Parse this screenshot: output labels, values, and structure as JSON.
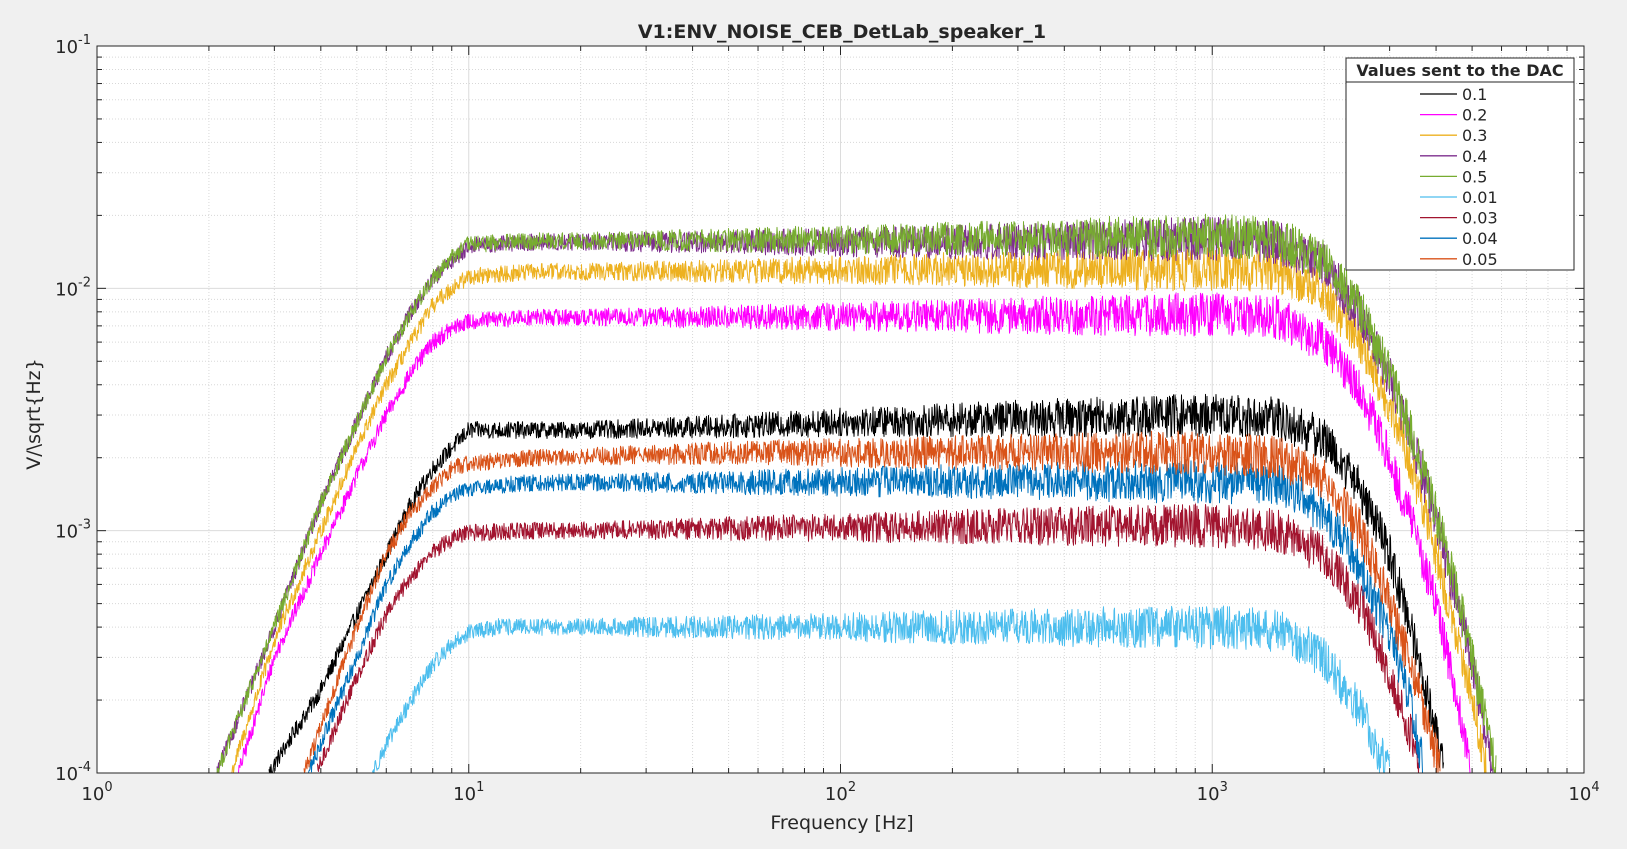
{
  "chart_data": {
    "type": "line",
    "title": "V1:ENV_NOISE_CEB_DetLab_speaker_1",
    "xlabel": "Frequency [Hz]",
    "ylabel": "V/\\sqrt{Hz}",
    "xscale": "log",
    "yscale": "log",
    "xlim": [
      1,
      10000
    ],
    "ylim": [
      0.0001,
      0.1
    ],
    "x_tick_labels": [
      {
        "base": "10",
        "exp": "0"
      },
      {
        "base": "10",
        "exp": "1"
      },
      {
        "base": "10",
        "exp": "2"
      },
      {
        "base": "10",
        "exp": "3"
      },
      {
        "base": "10",
        "exp": "4"
      }
    ],
    "y_tick_labels": [
      {
        "base": "10",
        "exp": "-4"
      },
      {
        "base": "10",
        "exp": "-3"
      },
      {
        "base": "10",
        "exp": "-2"
      },
      {
        "base": "10",
        "exp": "-1"
      }
    ],
    "grid": true,
    "minor_grid": true,
    "legend": {
      "title": "Values sent to the DAC",
      "position": "top-right"
    },
    "series": [
      {
        "name": "0.1",
        "color": "#000000",
        "points": [
          [
            2.9,
            0.0001
          ],
          [
            4,
            0.00022
          ],
          [
            5,
            0.00045
          ],
          [
            6,
            0.0008
          ],
          [
            7,
            0.0013
          ],
          [
            8,
            0.0018
          ],
          [
            9,
            0.0022
          ],
          [
            10,
            0.0026
          ],
          [
            12,
            0.0026
          ],
          [
            20,
            0.0026
          ],
          [
            50,
            0.0027
          ],
          [
            100,
            0.0028
          ],
          [
            300,
            0.0029
          ],
          [
            1000,
            0.003
          ],
          [
            1500,
            0.0029
          ],
          [
            2000,
            0.0024
          ],
          [
            2500,
            0.0015
          ],
          [
            3000,
            0.0008
          ],
          [
            3500,
            0.00035
          ],
          [
            4000,
            0.00015
          ],
          [
            4200,
            0.0001
          ]
        ]
      },
      {
        "name": "0.2",
        "color": "#ff00ff",
        "points": [
          [
            2.4,
            0.0001
          ],
          [
            3,
            0.0003
          ],
          [
            4,
            0.0008
          ],
          [
            5,
            0.0017
          ],
          [
            6,
            0.003
          ],
          [
            7,
            0.0045
          ],
          [
            8,
            0.006
          ],
          [
            9,
            0.0068
          ],
          [
            10,
            0.0073
          ],
          [
            15,
            0.0076
          ],
          [
            50,
            0.0076
          ],
          [
            200,
            0.0077
          ],
          [
            1000,
            0.0078
          ],
          [
            1500,
            0.0076
          ],
          [
            2000,
            0.006
          ],
          [
            2500,
            0.0038
          ],
          [
            3000,
            0.002
          ],
          [
            3500,
            0.001
          ],
          [
            4000,
            0.0005
          ],
          [
            4500,
            0.00022
          ],
          [
            5000,
            0.0001
          ]
        ]
      },
      {
        "name": "0.3",
        "color": "#edb120",
        "points": [
          [
            2.3,
            0.0001
          ],
          [
            3,
            0.00035
          ],
          [
            4,
            0.001
          ],
          [
            5,
            0.0022
          ],
          [
            6,
            0.004
          ],
          [
            7,
            0.006
          ],
          [
            8,
            0.0085
          ],
          [
            9,
            0.01
          ],
          [
            10,
            0.0112
          ],
          [
            15,
            0.0117
          ],
          [
            50,
            0.0118
          ],
          [
            200,
            0.012
          ],
          [
            1000,
            0.012
          ],
          [
            1500,
            0.0118
          ],
          [
            2000,
            0.0095
          ],
          [
            2500,
            0.006
          ],
          [
            3000,
            0.0033
          ],
          [
            3500,
            0.0017
          ],
          [
            4000,
            0.0008
          ],
          [
            4500,
            0.0004
          ],
          [
            5000,
            0.0002
          ],
          [
            5500,
            0.0001
          ]
        ]
      },
      {
        "name": "0.4",
        "color": "#7e2f8e",
        "points": [
          [
            2.1,
            0.0001
          ],
          [
            3,
            0.0004
          ],
          [
            4,
            0.0013
          ],
          [
            5,
            0.0028
          ],
          [
            6,
            0.0052
          ],
          [
            7,
            0.008
          ],
          [
            8,
            0.0108
          ],
          [
            9,
            0.013
          ],
          [
            10,
            0.015
          ],
          [
            15,
            0.0155
          ],
          [
            50,
            0.0155
          ],
          [
            200,
            0.0155
          ],
          [
            1000,
            0.016
          ],
          [
            1500,
            0.0155
          ],
          [
            2000,
            0.0125
          ],
          [
            2500,
            0.0078
          ],
          [
            3000,
            0.0043
          ],
          [
            3500,
            0.0022
          ],
          [
            4000,
            0.0011
          ],
          [
            4500,
            0.00055
          ],
          [
            5000,
            0.00028
          ],
          [
            5700,
            0.0001
          ]
        ]
      },
      {
        "name": "0.5",
        "color": "#77ac30",
        "points": [
          [
            2.1,
            0.0001
          ],
          [
            3,
            0.0004
          ],
          [
            4,
            0.0013
          ],
          [
            5,
            0.0028
          ],
          [
            6,
            0.0052
          ],
          [
            7,
            0.008
          ],
          [
            8,
            0.011
          ],
          [
            9,
            0.0135
          ],
          [
            10,
            0.0152
          ],
          [
            15,
            0.0157
          ],
          [
            50,
            0.0158
          ],
          [
            200,
            0.016
          ],
          [
            1000,
            0.0165
          ],
          [
            1500,
            0.016
          ],
          [
            2000,
            0.013
          ],
          [
            2500,
            0.0082
          ],
          [
            3000,
            0.0045
          ],
          [
            3500,
            0.0023
          ],
          [
            4000,
            0.0012
          ],
          [
            4500,
            0.0006
          ],
          [
            5000,
            0.0003
          ],
          [
            5800,
            0.0001
          ]
        ]
      },
      {
        "name": "0.01",
        "color": "#4dbeee",
        "points": [
          [
            5.5,
            0.0001
          ],
          [
            6,
            0.00013
          ],
          [
            7,
            0.0002
          ],
          [
            8,
            0.00028
          ],
          [
            9,
            0.00034
          ],
          [
            10,
            0.00038
          ],
          [
            12,
            0.0004
          ],
          [
            50,
            0.0004
          ],
          [
            200,
            0.0004
          ],
          [
            1000,
            0.0004
          ],
          [
            1500,
            0.00039
          ],
          [
            2000,
            0.0003
          ],
          [
            2500,
            0.00018
          ],
          [
            3000,
            0.0001
          ]
        ]
      },
      {
        "name": "0.03",
        "color": "#a2142f",
        "points": [
          [
            3.9,
            0.0001
          ],
          [
            5,
            0.00025
          ],
          [
            6,
            0.00045
          ],
          [
            7,
            0.00065
          ],
          [
            8,
            0.00082
          ],
          [
            9,
            0.00092
          ],
          [
            10,
            0.00098
          ],
          [
            15,
            0.001
          ],
          [
            50,
            0.00102
          ],
          [
            200,
            0.00104
          ],
          [
            1000,
            0.00105
          ],
          [
            1500,
            0.001
          ],
          [
            2000,
            0.0008
          ],
          [
            2500,
            0.0005
          ],
          [
            3000,
            0.00026
          ],
          [
            3500,
            0.00013
          ],
          [
            3600,
            0.0001
          ]
        ]
      },
      {
        "name": "0.04",
        "color": "#0072bd",
        "points": [
          [
            3.7,
            0.0001
          ],
          [
            5,
            0.0003
          ],
          [
            6,
            0.0006
          ],
          [
            7,
            0.0009
          ],
          [
            8,
            0.0012
          ],
          [
            9,
            0.0014
          ],
          [
            10,
            0.0015
          ],
          [
            15,
            0.00158
          ],
          [
            50,
            0.00158
          ],
          [
            200,
            0.0016
          ],
          [
            1000,
            0.0016
          ],
          [
            1500,
            0.00155
          ],
          [
            2000,
            0.0012
          ],
          [
            2500,
            0.0007
          ],
          [
            3000,
            0.00038
          ],
          [
            3500,
            0.00017
          ],
          [
            3700,
            0.0001
          ]
        ]
      },
      {
        "name": "0.05",
        "color": "#d95319",
        "points": [
          [
            3.6,
            0.0001
          ],
          [
            5,
            0.0004
          ],
          [
            6,
            0.0008
          ],
          [
            7,
            0.0012
          ],
          [
            8,
            0.0015
          ],
          [
            9,
            0.0018
          ],
          [
            10,
            0.0019
          ],
          [
            15,
            0.002
          ],
          [
            50,
            0.0021
          ],
          [
            200,
            0.0021
          ],
          [
            1000,
            0.0021
          ],
          [
            1500,
            0.002
          ],
          [
            2000,
            0.0016
          ],
          [
            2500,
            0.001
          ],
          [
            3000,
            0.0005
          ],
          [
            3500,
            0.00025
          ],
          [
            4000,
            0.00012
          ],
          [
            4100,
            0.0001
          ]
        ]
      }
    ]
  }
}
